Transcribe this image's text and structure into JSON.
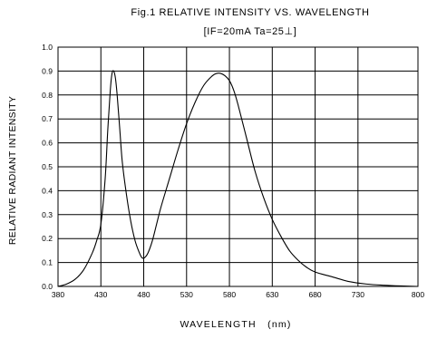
{
  "chart_data": {
    "type": "line",
    "title": "Fig.1 RELATIVE INTENSITY VS. WAVELENGTH",
    "subtitle": "[IF=20mA Ta=25⊥]",
    "xlabel": "WAVELENGTH   (nm)",
    "ylabel": "RELATIVE RADIANT INTENSITY",
    "xlim": [
      380,
      800
    ],
    "ylim": [
      0.0,
      1.0
    ],
    "x_ticks": [
      380,
      430,
      480,
      530,
      580,
      630,
      680,
      730,
      800
    ],
    "y_ticks": [
      0.0,
      0.1,
      0.2,
      0.3,
      0.4,
      0.5,
      0.6,
      0.7,
      0.8,
      0.9,
      1.0
    ],
    "grid": true,
    "series": [
      {
        "color": "#000000",
        "x": [
          380,
          390,
          400,
          410,
          420,
          425,
          430,
          435,
          438,
          441,
          443,
          445,
          447,
          449,
          452,
          455,
          460,
          465,
          470,
          475,
          478,
          481,
          485,
          490,
          495,
          500,
          510,
          520,
          530,
          540,
          550,
          560,
          565,
          570,
          575,
          580,
          585,
          590,
          600,
          610,
          620,
          630,
          640,
          650,
          660,
          670,
          680,
          700,
          720,
          740,
          760,
          780,
          800
        ],
        "y": [
          0.0,
          0.01,
          0.03,
          0.07,
          0.14,
          0.19,
          0.26,
          0.45,
          0.65,
          0.82,
          0.89,
          0.9,
          0.87,
          0.8,
          0.66,
          0.52,
          0.38,
          0.27,
          0.19,
          0.14,
          0.12,
          0.12,
          0.14,
          0.19,
          0.26,
          0.33,
          0.45,
          0.57,
          0.68,
          0.77,
          0.84,
          0.88,
          0.89,
          0.89,
          0.88,
          0.86,
          0.82,
          0.76,
          0.62,
          0.48,
          0.37,
          0.28,
          0.21,
          0.15,
          0.11,
          0.08,
          0.06,
          0.04,
          0.02,
          0.01,
          0.005,
          0.002,
          0.0
        ]
      }
    ]
  }
}
